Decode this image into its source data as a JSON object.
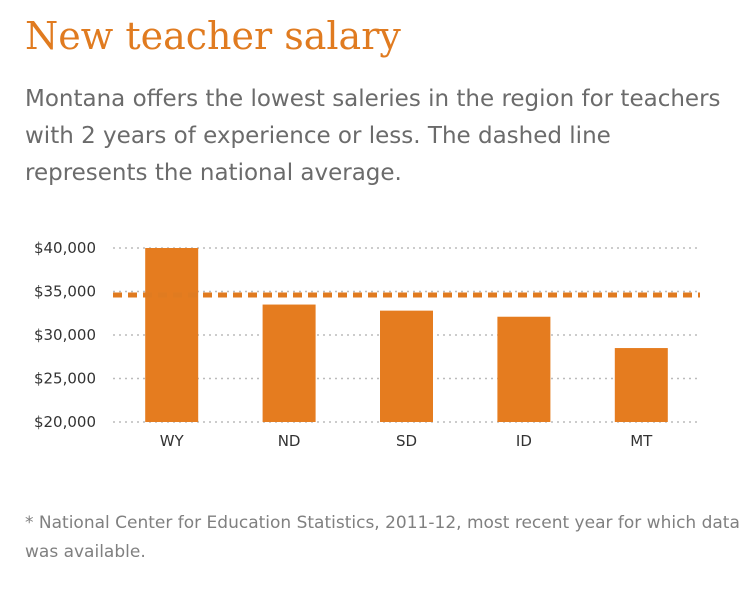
{
  "title": "New teacher salary",
  "subtitle": "Montana offers the lowest saleries in the region for teachers with 2 years of experience or less. The dashed line represents the national average.",
  "footnote": "* National Center for Education Statistics, 2011-12, most recent year for which data was available.",
  "colors": {
    "accent": "#e07b20",
    "bar": "#e57c1f",
    "grid": "#bbbbbb"
  },
  "chart_data": {
    "type": "bar",
    "categories": [
      "WY",
      "ND",
      "SD",
      "ID",
      "MT"
    ],
    "values": [
      40000,
      33500,
      32800,
      32100,
      28500
    ],
    "ylim": [
      20000,
      40000
    ],
    "yticks": [
      20000,
      25000,
      30000,
      35000,
      40000
    ],
    "ytick_labels": [
      "$20,000",
      "$25,000",
      "$30,000",
      "$35,000",
      "$40,000"
    ],
    "reference_line": {
      "value": 34600,
      "style": "dashed"
    },
    "grid": true,
    "xlabel": "",
    "ylabel": ""
  }
}
